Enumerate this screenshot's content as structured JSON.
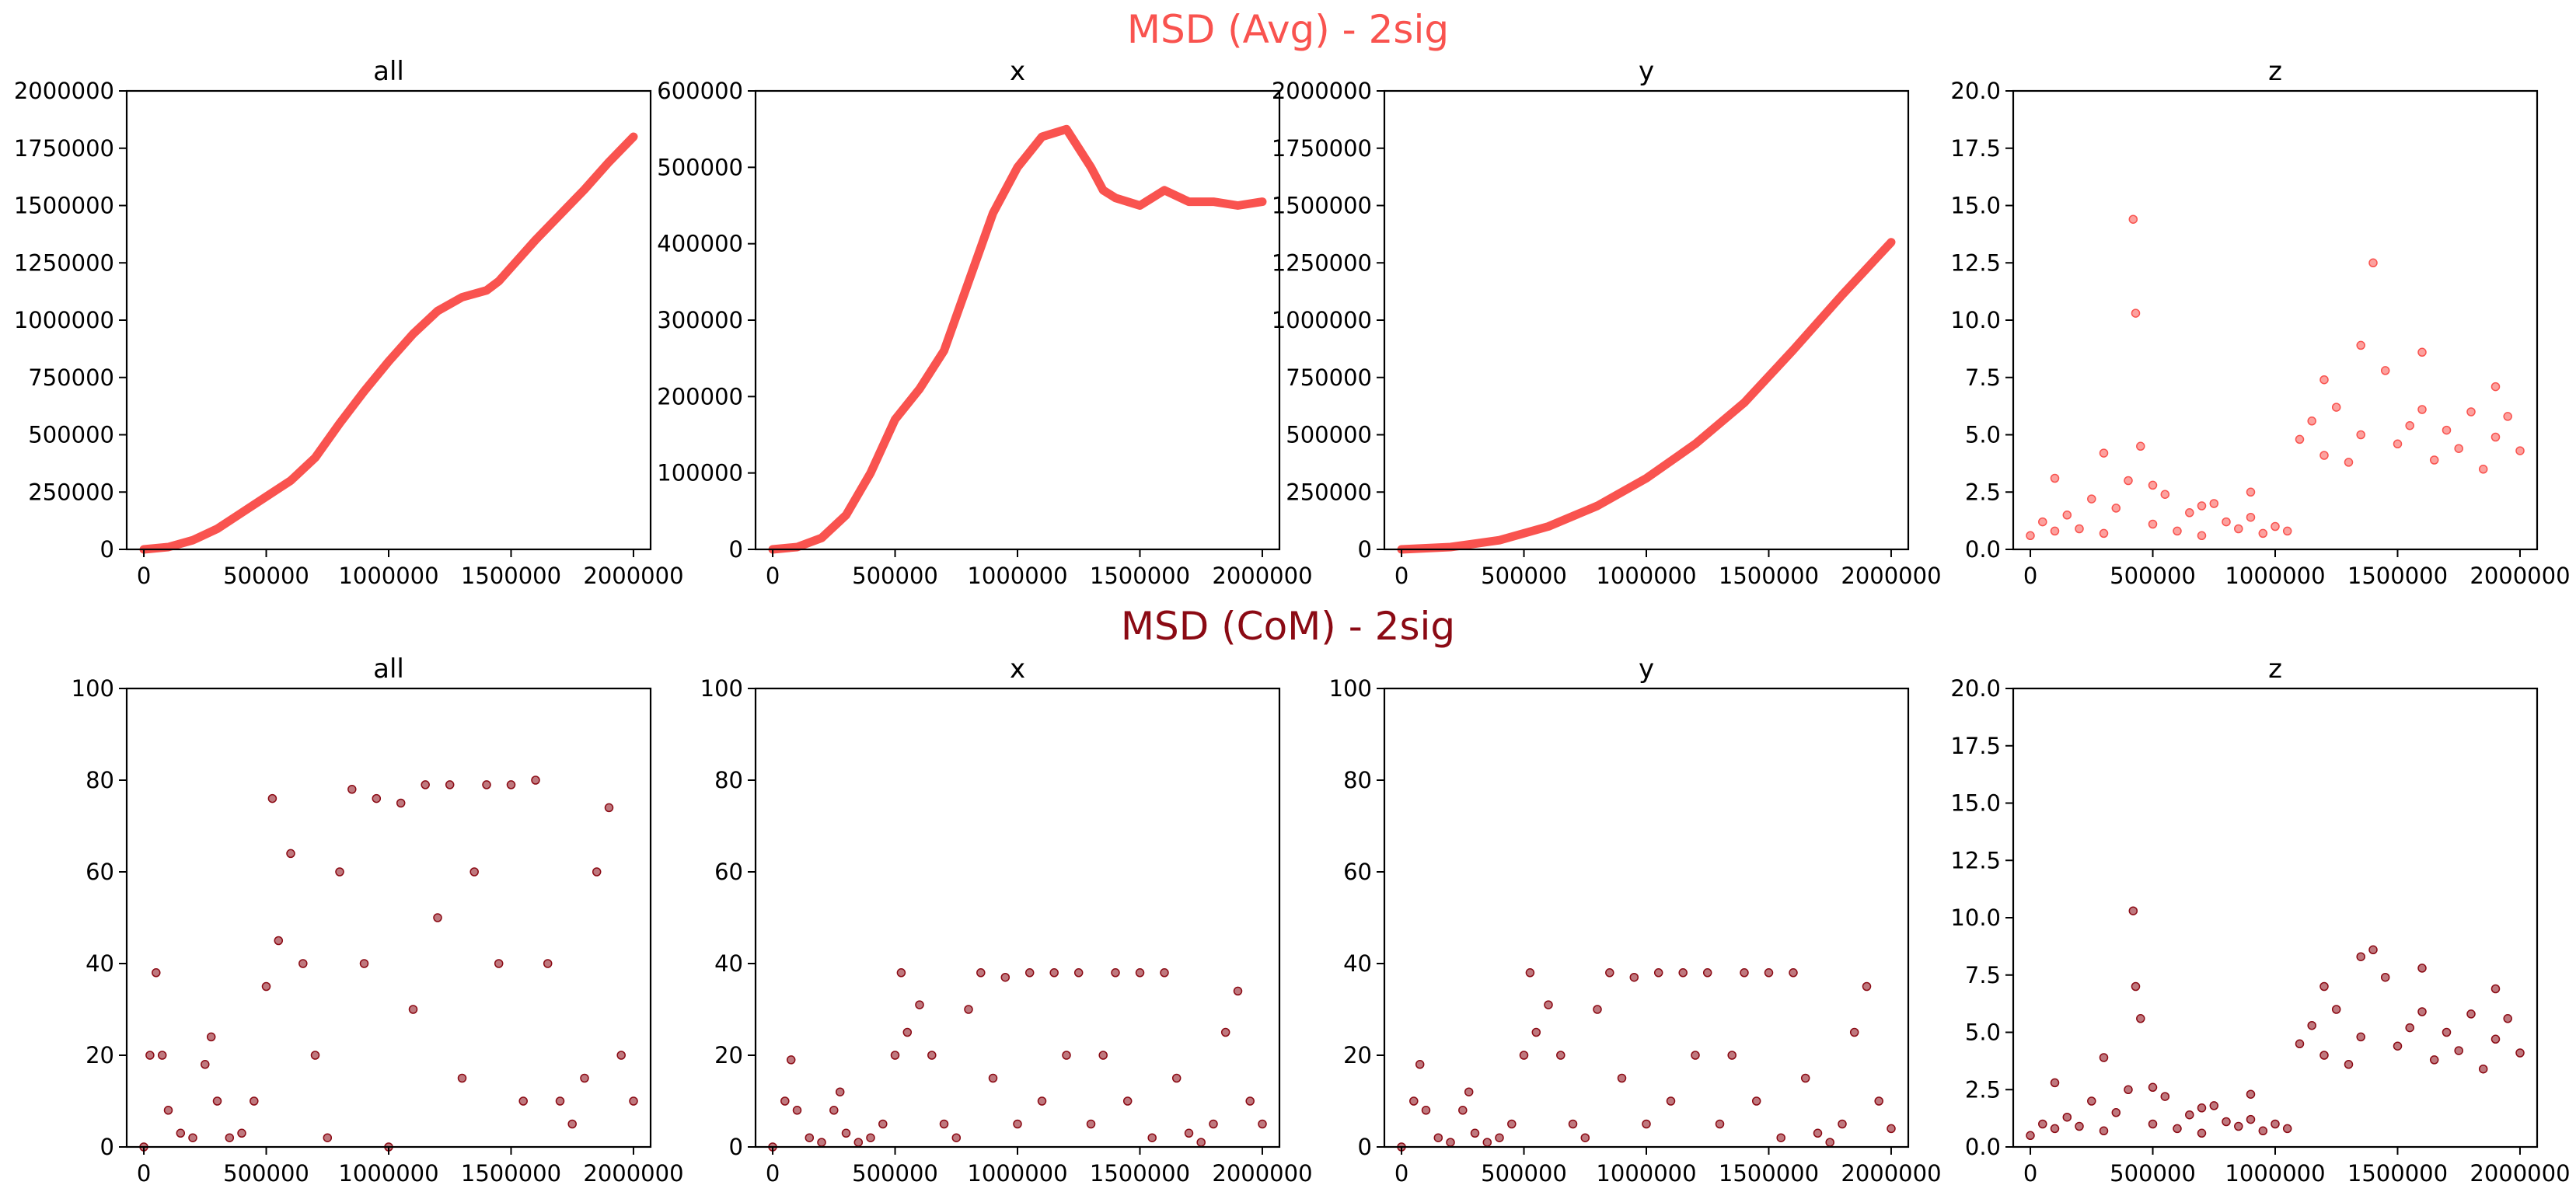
{
  "figure": {
    "row_titles": [
      {
        "text": "MSD (Avg) - 2sig",
        "color": "#f9534f"
      },
      {
        "text": "MSD (CoM) - 2sig",
        "color": "#8b0a14"
      }
    ]
  },
  "chart_data": [
    {
      "row": 0,
      "col": 0,
      "type": "line",
      "title": "all",
      "color": "#f9534f",
      "xlim": [
        -70000,
        2070000
      ],
      "ylim": [
        0,
        2000000
      ],
      "xticks": [
        0,
        500000,
        1000000,
        1500000,
        2000000
      ],
      "xtick_labels": [
        "0",
        "500000",
        "1000000",
        "1500000",
        "2000000"
      ],
      "yticks": [
        0,
        250000,
        500000,
        750000,
        1000000,
        1250000,
        1500000,
        1750000,
        2000000
      ],
      "ytick_labels": [
        "0",
        "250000",
        "500000",
        "750000",
        "1000000",
        "1250000",
        "1500000",
        "1750000",
        "2000000"
      ],
      "x": [
        0,
        100000,
        200000,
        300000,
        400000,
        500000,
        600000,
        700000,
        800000,
        900000,
        1000000,
        1100000,
        1200000,
        1300000,
        1400000,
        1450000,
        1500000,
        1600000,
        1700000,
        1800000,
        1900000,
        2000000
      ],
      "y": [
        0,
        10000,
        40000,
        90000,
        160000,
        230000,
        300000,
        400000,
        550000,
        690000,
        820000,
        940000,
        1040000,
        1100000,
        1130000,
        1170000,
        1230000,
        1350000,
        1460000,
        1570000,
        1690000,
        1800000
      ]
    },
    {
      "row": 0,
      "col": 1,
      "type": "line",
      "title": "x",
      "color": "#f9534f",
      "xlim": [
        -70000,
        2070000
      ],
      "ylim": [
        0,
        600000
      ],
      "xticks": [
        0,
        500000,
        1000000,
        1500000,
        2000000
      ],
      "xtick_labels": [
        "0",
        "500000",
        "1000000",
        "1500000",
        "2000000"
      ],
      "yticks": [
        0,
        100000,
        200000,
        300000,
        400000,
        500000,
        600000
      ],
      "ytick_labels": [
        "0",
        "100000",
        "200000",
        "300000",
        "400000",
        "500000",
        "600000"
      ],
      "x": [
        0,
        100000,
        200000,
        300000,
        400000,
        500000,
        600000,
        700000,
        800000,
        900000,
        1000000,
        1100000,
        1200000,
        1300000,
        1350000,
        1400000,
        1500000,
        1550000,
        1600000,
        1700000,
        1800000,
        1900000,
        2000000
      ],
      "y": [
        0,
        3000,
        15000,
        45000,
        100000,
        170000,
        210000,
        260000,
        350000,
        440000,
        500000,
        540000,
        550000,
        500000,
        470000,
        460000,
        450000,
        460000,
        470000,
        455000,
        455000,
        450000,
        455000
      ]
    },
    {
      "row": 0,
      "col": 2,
      "type": "line",
      "title": "y",
      "color": "#f9534f",
      "xlim": [
        -70000,
        2070000
      ],
      "ylim": [
        0,
        2000000
      ],
      "xticks": [
        0,
        500000,
        1000000,
        1500000,
        2000000
      ],
      "xtick_labels": [
        "0",
        "500000",
        "1000000",
        "1500000",
        "2000000"
      ],
      "yticks": [
        0,
        250000,
        500000,
        750000,
        1000000,
        1250000,
        1500000,
        1750000,
        2000000
      ],
      "ytick_labels": [
        "0",
        "250000",
        "500000",
        "750000",
        "1000000",
        "1250000",
        "1500000",
        "1750000",
        "2000000"
      ],
      "x": [
        0,
        200000,
        400000,
        600000,
        800000,
        1000000,
        1200000,
        1400000,
        1600000,
        1800000,
        2000000
      ],
      "y": [
        0,
        10000,
        40000,
        100000,
        190000,
        310000,
        460000,
        640000,
        870000,
        1110000,
        1340000
      ]
    },
    {
      "row": 0,
      "col": 3,
      "type": "scatter",
      "title": "z",
      "color": "#f9534f",
      "xlim": [
        -70000,
        2070000
      ],
      "ylim": [
        0,
        20
      ],
      "xticks": [
        0,
        500000,
        1000000,
        1500000,
        2000000
      ],
      "xtick_labels": [
        "0",
        "500000",
        "1000000",
        "1500000",
        "2000000"
      ],
      "yticks": [
        0,
        2.5,
        5,
        7.5,
        10,
        12.5,
        15,
        17.5,
        20
      ],
      "ytick_labels": [
        "0.0",
        "2.5",
        "5.0",
        "7.5",
        "10.0",
        "12.5",
        "15.0",
        "17.5",
        "20.0"
      ],
      "x": [
        0,
        50000,
        100000,
        150000,
        200000,
        250000,
        300000,
        350000,
        400000,
        420000,
        430000,
        450000,
        500000,
        550000,
        600000,
        650000,
        700000,
        750000,
        800000,
        850000,
        900000,
        950000,
        1000000,
        1050000,
        1100000,
        1150000,
        1200000,
        1250000,
        1300000,
        1350000,
        1400000,
        1450000,
        1500000,
        1550000,
        1600000,
        1650000,
        1700000,
        1750000,
        1800000,
        1850000,
        1900000,
        1950000,
        2000000,
        100000,
        300000,
        500000,
        700000,
        900000,
        1200000,
        1350000,
        1600000,
        1900000
      ],
      "y": [
        0.6,
        1.2,
        0.8,
        1.5,
        0.9,
        2.2,
        0.7,
        1.8,
        3.0,
        14.4,
        10.3,
        4.5,
        1.1,
        2.4,
        0.8,
        1.6,
        0.6,
        2.0,
        1.2,
        0.9,
        1.4,
        0.7,
        1.0,
        0.8,
        4.8,
        5.6,
        4.1,
        6.2,
        3.8,
        5.0,
        12.5,
        7.8,
        4.6,
        5.4,
        6.1,
        3.9,
        5.2,
        4.4,
        6.0,
        3.5,
        4.9,
        5.8,
        4.3,
        3.1,
        4.2,
        2.8,
        1.9,
        2.5,
        7.4,
        8.9,
        8.6,
        7.1
      ]
    },
    {
      "row": 1,
      "col": 0,
      "type": "scatter",
      "title": "all",
      "color": "#8b0a14",
      "xlim": [
        -70000,
        2070000
      ],
      "ylim": [
        0,
        100
      ],
      "xticks": [
        0,
        500000,
        1000000,
        1500000,
        2000000
      ],
      "xtick_labels": [
        "0",
        "500000",
        "1000000",
        "1500000",
        "2000000"
      ],
      "yticks": [
        0,
        20,
        40,
        60,
        80,
        100
      ],
      "ytick_labels": [
        "0",
        "20",
        "40",
        "60",
        "80",
        "100"
      ],
      "x": [
        0,
        25000,
        50000,
        75000,
        100000,
        150000,
        200000,
        250000,
        275000,
        300000,
        350000,
        400000,
        450000,
        500000,
        525000,
        550000,
        600000,
        650000,
        700000,
        750000,
        800000,
        850000,
        900000,
        950000,
        1000000,
        1050000,
        1100000,
        1150000,
        1200000,
        1250000,
        1300000,
        1350000,
        1400000,
        1450000,
        1500000,
        1550000,
        1600000,
        1650000,
        1700000,
        1750000,
        1800000,
        1850000,
        1900000,
        1950000,
        2000000
      ],
      "y": [
        0,
        20,
        38,
        20,
        8,
        3,
        2,
        18,
        24,
        10,
        2,
        3,
        10,
        35,
        76,
        45,
        64,
        40,
        20,
        2,
        60,
        78,
        40,
        76,
        0,
        75,
        30,
        79,
        50,
        79,
        15,
        60,
        79,
        40,
        79,
        10,
        80,
        40,
        10,
        5,
        15,
        60,
        74,
        20,
        10
      ]
    },
    {
      "row": 1,
      "col": 1,
      "type": "scatter",
      "title": "x",
      "color": "#8b0a14",
      "xlim": [
        -70000,
        2070000
      ],
      "ylim": [
        0,
        100
      ],
      "xticks": [
        0,
        500000,
        1000000,
        1500000,
        2000000
      ],
      "xtick_labels": [
        "0",
        "500000",
        "1000000",
        "1500000",
        "2000000"
      ],
      "yticks": [
        0,
        20,
        40,
        60,
        80,
        100
      ],
      "ytick_labels": [
        "0",
        "20",
        "40",
        "60",
        "80",
        "100"
      ],
      "x": [
        0,
        50000,
        75000,
        100000,
        150000,
        200000,
        250000,
        275000,
        300000,
        350000,
        400000,
        450000,
        500000,
        525000,
        550000,
        600000,
        650000,
        700000,
        750000,
        800000,
        850000,
        900000,
        950000,
        1000000,
        1050000,
        1100000,
        1150000,
        1200000,
        1250000,
        1300000,
        1350000,
        1400000,
        1450000,
        1500000,
        1550000,
        1600000,
        1650000,
        1700000,
        1750000,
        1800000,
        1850000,
        1900000,
        1950000,
        2000000
      ],
      "y": [
        0,
        10,
        19,
        8,
        2,
        1,
        8,
        12,
        3,
        1,
        2,
        5,
        20,
        38,
        25,
        31,
        20,
        5,
        2,
        30,
        38,
        15,
        37,
        5,
        38,
        10,
        38,
        20,
        38,
        5,
        20,
        38,
        10,
        38,
        2,
        38,
        15,
        3,
        1,
        5,
        25,
        34,
        10,
        5
      ]
    },
    {
      "row": 1,
      "col": 2,
      "type": "scatter",
      "title": "y",
      "color": "#8b0a14",
      "xlim": [
        -70000,
        2070000
      ],
      "ylim": [
        0,
        100
      ],
      "xticks": [
        0,
        500000,
        1000000,
        1500000,
        2000000
      ],
      "xtick_labels": [
        "0",
        "500000",
        "1000000",
        "1500000",
        "2000000"
      ],
      "yticks": [
        0,
        20,
        40,
        60,
        80,
        100
      ],
      "ytick_labels": [
        "0",
        "20",
        "40",
        "60",
        "80",
        "100"
      ],
      "x": [
        0,
        50000,
        75000,
        100000,
        150000,
        200000,
        250000,
        275000,
        300000,
        350000,
        400000,
        450000,
        500000,
        525000,
        550000,
        600000,
        650000,
        700000,
        750000,
        800000,
        850000,
        900000,
        950000,
        1000000,
        1050000,
        1100000,
        1150000,
        1200000,
        1250000,
        1300000,
        1350000,
        1400000,
        1450000,
        1500000,
        1550000,
        1600000,
        1650000,
        1700000,
        1750000,
        1800000,
        1850000,
        1900000,
        1950000,
        2000000
      ],
      "y": [
        0,
        10,
        18,
        8,
        2,
        1,
        8,
        12,
        3,
        1,
        2,
        5,
        20,
        38,
        25,
        31,
        20,
        5,
        2,
        30,
        38,
        15,
        37,
        5,
        38,
        10,
        38,
        20,
        38,
        5,
        20,
        38,
        10,
        38,
        2,
        38,
        15,
        3,
        1,
        5,
        25,
        35,
        10,
        4
      ]
    },
    {
      "row": 1,
      "col": 3,
      "type": "scatter",
      "title": "z",
      "color": "#8b0a14",
      "xlim": [
        -70000,
        2070000
      ],
      "ylim": [
        0,
        20
      ],
      "xticks": [
        0,
        500000,
        1000000,
        1500000,
        2000000
      ],
      "xtick_labels": [
        "0",
        "500000",
        "1000000",
        "1500000",
        "2000000"
      ],
      "yticks": [
        0,
        2.5,
        5,
        7.5,
        10,
        12.5,
        15,
        17.5,
        20
      ],
      "ytick_labels": [
        "0.0",
        "2.5",
        "5.0",
        "7.5",
        "10.0",
        "12.5",
        "15.0",
        "17.5",
        "20.0"
      ],
      "x": [
        0,
        50000,
        100000,
        150000,
        200000,
        250000,
        300000,
        350000,
        400000,
        420000,
        430000,
        450000,
        500000,
        550000,
        600000,
        650000,
        700000,
        750000,
        800000,
        850000,
        900000,
        950000,
        1000000,
        1050000,
        1100000,
        1150000,
        1200000,
        1250000,
        1300000,
        1350000,
        1400000,
        1450000,
        1500000,
        1550000,
        1600000,
        1650000,
        1700000,
        1750000,
        1800000,
        1850000,
        1900000,
        1950000,
        2000000,
        100000,
        300000,
        500000,
        700000,
        900000,
        1200000,
        1350000,
        1600000,
        1900000
      ],
      "y": [
        0.5,
        1.0,
        0.8,
        1.3,
        0.9,
        2.0,
        0.7,
        1.5,
        2.5,
        10.3,
        7.0,
        5.6,
        1.0,
        2.2,
        0.8,
        1.4,
        0.6,
        1.8,
        1.1,
        0.9,
        1.2,
        0.7,
        1.0,
        0.8,
        4.5,
        5.3,
        4.0,
        6.0,
        3.6,
        4.8,
        8.6,
        7.4,
        4.4,
        5.2,
        5.9,
        3.8,
        5.0,
        4.2,
        5.8,
        3.4,
        4.7,
        5.6,
        4.1,
        2.8,
        3.9,
        2.6,
        1.7,
        2.3,
        7.0,
        8.3,
        7.8,
        6.9
      ]
    }
  ]
}
